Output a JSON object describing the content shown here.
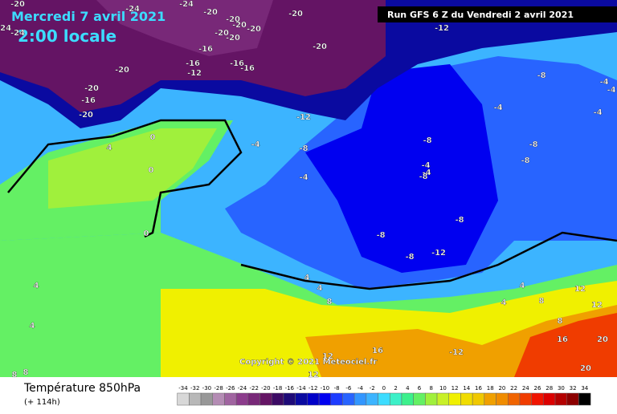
{
  "header": {
    "date": "Mercredi 7 avril 2021",
    "time": "2:00 locale",
    "run": "Run GFS 6 Z du Vendredi 2 avril 2021"
  },
  "copyright": "Copyright © 2021 Meteociel.fr",
  "legend": {
    "title": "Température 850hPa",
    "lead": "(+ 114h)",
    "scale": {
      "ticks": [
        -34,
        -32,
        -30,
        -28,
        -26,
        -24,
        -22,
        -20,
        -18,
        -16,
        -14,
        -12,
        -10,
        -8,
        -6,
        -4,
        -2,
        0,
        2,
        4,
        6,
        8,
        10,
        12,
        14,
        16,
        18,
        20,
        22,
        24,
        26,
        28,
        30,
        32,
        34
      ],
      "colors": [
        "#d8d8d8",
        "#b8b8b8",
        "#989898",
        "#b48cb4",
        "#a064a0",
        "#8c3c8c",
        "#782878",
        "#641464",
        "#3c0a64",
        "#1e0a78",
        "#0a0aa0",
        "#0000c8",
        "#0000f0",
        "#1e3cff",
        "#2864ff",
        "#3296ff",
        "#3cb4ff",
        "#3cdcff",
        "#3cf0c8",
        "#3cf08c",
        "#64f064",
        "#a0f03c",
        "#c8f028",
        "#f0f000",
        "#f0dc00",
        "#f0c800",
        "#f0a000",
        "#f08c00",
        "#f06400",
        "#f03c00",
        "#f01400",
        "#dc0000",
        "#b40000",
        "#8c0000",
        "#000000"
      ]
    }
  },
  "map": {
    "labels": [
      -20,
      -24,
      -24,
      -20,
      -20,
      -24,
      -24,
      -20,
      -20,
      -20,
      -20,
      -20,
      -12,
      -20,
      -16,
      -16,
      -12,
      -16,
      -16,
      -20,
      -20,
      -16,
      -20,
      -12,
      -8,
      -4,
      -4,
      -4,
      -4,
      -4,
      -8,
      -8,
      -8,
      -8,
      -4,
      -4,
      -8,
      -4,
      -8,
      -8,
      -8,
      -12,
      4,
      0,
      0,
      0,
      4,
      4,
      4,
      4,
      8,
      4,
      4,
      8,
      12,
      12,
      8,
      16,
      20,
      16,
      -12,
      12,
      12,
      20,
      8,
      8
    ]
  }
}
